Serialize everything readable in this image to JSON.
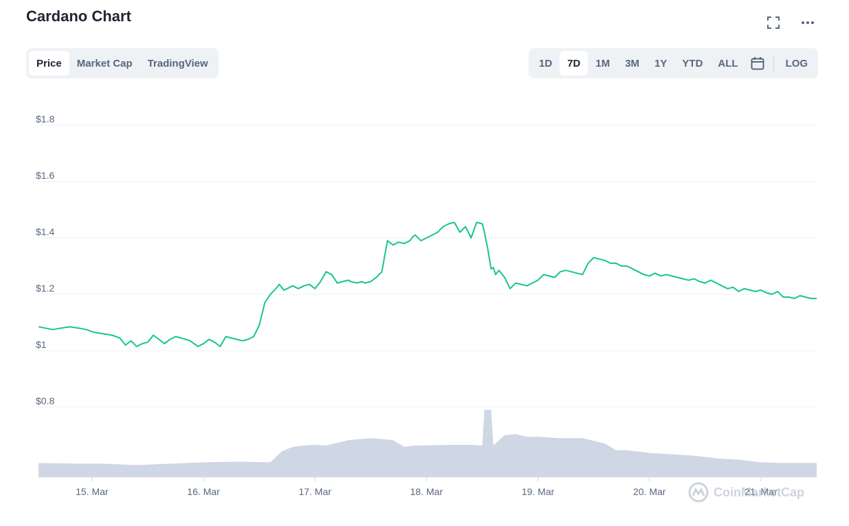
{
  "header": {
    "title": "Cardano Chart",
    "fullscreen_icon": "fullscreen-icon",
    "more_icon": "more-options-icon"
  },
  "tabs": [
    {
      "label": "Price",
      "active": true
    },
    {
      "label": "Market Cap",
      "active": false
    },
    {
      "label": "TradingView",
      "active": false
    }
  ],
  "ranges": [
    {
      "label": "1D",
      "active": false
    },
    {
      "label": "7D",
      "active": true
    },
    {
      "label": "1M",
      "active": false
    },
    {
      "label": "3M",
      "active": false
    },
    {
      "label": "1Y",
      "active": false
    },
    {
      "label": "YTD",
      "active": false
    },
    {
      "label": "ALL",
      "active": false
    }
  ],
  "calendar_icon": "calendar-icon",
  "log_label": "LOG",
  "watermark": {
    "text": "CoinMarketCap",
    "icon": "coinmarketcap-logo-icon"
  },
  "colors": {
    "line": "#16c784",
    "volume": "#cfd6e4",
    "grid": "#eff2f5",
    "text": "#58667e",
    "accent": "#222531"
  },
  "chart_data": {
    "type": "line",
    "yticks": [
      "$1.8",
      "$1.6",
      "$1.4",
      "$1.2",
      "$1",
      "$0.8"
    ],
    "ytick_values": [
      1.8,
      1.6,
      1.4,
      1.2,
      1.0,
      0.8
    ],
    "ylim": [
      0.8,
      1.8
    ],
    "xticks": [
      "15. Mar",
      "16. Mar",
      "17. Mar",
      "18. Mar",
      "19. Mar",
      "20. Mar",
      "21. Mar"
    ],
    "x_range_days": [
      14.52,
      21.5
    ],
    "grid": true,
    "price_series": {
      "x": [
        14.52,
        14.58,
        14.65,
        14.72,
        14.8,
        14.88,
        14.95,
        15.02,
        15.1,
        15.18,
        15.25,
        15.3,
        15.35,
        15.4,
        15.45,
        15.5,
        15.55,
        15.6,
        15.65,
        15.7,
        15.75,
        15.8,
        15.88,
        15.95,
        16.0,
        16.05,
        16.1,
        16.15,
        16.2,
        16.25,
        16.3,
        16.35,
        16.4,
        16.45,
        16.5,
        16.55,
        16.6,
        16.65,
        16.68,
        16.72,
        16.75,
        16.8,
        16.85,
        16.9,
        16.95,
        17.0,
        17.05,
        17.1,
        17.15,
        17.2,
        17.25,
        17.3,
        17.32,
        17.38,
        17.42,
        17.45,
        17.5,
        17.55,
        17.6,
        17.65,
        17.7,
        17.75,
        17.8,
        17.85,
        17.88,
        17.9,
        17.95,
        18.0,
        18.05,
        18.1,
        18.15,
        18.2,
        18.25,
        18.3,
        18.35,
        18.4,
        18.45,
        18.5,
        18.52,
        18.55,
        18.58,
        18.6,
        18.62,
        18.65,
        18.7,
        18.75,
        18.8,
        18.85,
        18.9,
        18.95,
        19.0,
        19.05,
        19.1,
        19.15,
        19.2,
        19.25,
        19.3,
        19.35,
        19.4,
        19.45,
        19.5,
        19.55,
        19.6,
        19.65,
        19.7,
        19.75,
        19.8,
        19.85,
        19.9,
        19.95,
        20.0,
        20.05,
        20.1,
        20.15,
        20.2,
        20.25,
        20.3,
        20.35,
        20.4,
        20.45,
        20.5,
        20.55,
        20.6,
        20.65,
        20.7,
        20.75,
        20.8,
        20.85,
        20.9,
        20.95,
        21.0,
        21.05,
        21.1,
        21.15,
        21.2,
        21.25,
        21.3,
        21.35,
        21.4,
        21.45,
        21.5
      ],
      "y": [
        1.085,
        1.08,
        1.075,
        1.08,
        1.085,
        1.08,
        1.075,
        1.065,
        1.06,
        1.055,
        1.045,
        1.02,
        1.035,
        1.015,
        1.025,
        1.03,
        1.055,
        1.04,
        1.025,
        1.04,
        1.05,
        1.045,
        1.035,
        1.015,
        1.025,
        1.04,
        1.03,
        1.015,
        1.05,
        1.045,
        1.04,
        1.035,
        1.04,
        1.05,
        1.09,
        1.17,
        1.2,
        1.22,
        1.235,
        1.215,
        1.22,
        1.23,
        1.22,
        1.23,
        1.235,
        1.22,
        1.245,
        1.28,
        1.27,
        1.24,
        1.245,
        1.25,
        1.245,
        1.24,
        1.245,
        1.24,
        1.245,
        1.26,
        1.28,
        1.39,
        1.375,
        1.385,
        1.38,
        1.39,
        1.405,
        1.41,
        1.39,
        1.4,
        1.41,
        1.42,
        1.44,
        1.45,
        1.455,
        1.42,
        1.44,
        1.4,
        1.455,
        1.45,
        1.42,
        1.36,
        1.29,
        1.295,
        1.27,
        1.285,
        1.26,
        1.22,
        1.24,
        1.235,
        1.23,
        1.24,
        1.25,
        1.27,
        1.265,
        1.26,
        1.28,
        1.285,
        1.28,
        1.275,
        1.27,
        1.31,
        1.33,
        1.325,
        1.32,
        1.31,
        1.31,
        1.3,
        1.3,
        1.29,
        1.28,
        1.27,
        1.265,
        1.275,
        1.265,
        1.27,
        1.265,
        1.26,
        1.255,
        1.25,
        1.255,
        1.245,
        1.24,
        1.25,
        1.24,
        1.23,
        1.22,
        1.225,
        1.21,
        1.22,
        1.215,
        1.21,
        1.215,
        1.205,
        1.2,
        1.21,
        1.19,
        1.19,
        1.185,
        1.195,
        1.19,
        1.185,
        1.185
      ]
    },
    "volume_series": {
      "x": [
        14.52,
        14.9,
        15.1,
        15.4,
        15.7,
        16.0,
        16.3,
        16.6,
        16.7,
        16.8,
        16.9,
        17.0,
        17.1,
        17.3,
        17.5,
        17.7,
        17.8,
        17.9,
        18.0,
        18.2,
        18.4,
        18.5,
        18.52,
        18.58,
        18.6,
        18.7,
        18.8,
        18.9,
        19.0,
        19.2,
        19.4,
        19.6,
        19.7,
        19.8,
        20.0,
        20.2,
        20.4,
        20.6,
        20.8,
        21.0,
        21.2,
        21.5
      ],
      "y": [
        0.21,
        0.2,
        0.2,
        0.18,
        0.2,
        0.22,
        0.23,
        0.22,
        0.38,
        0.45,
        0.47,
        0.48,
        0.47,
        0.55,
        0.58,
        0.55,
        0.45,
        0.47,
        0.47,
        0.48,
        0.48,
        0.47,
        1.0,
        1.0,
        0.47,
        0.62,
        0.64,
        0.6,
        0.6,
        0.58,
        0.58,
        0.5,
        0.4,
        0.4,
        0.36,
        0.34,
        0.32,
        0.28,
        0.26,
        0.22,
        0.21,
        0.21
      ]
    }
  }
}
